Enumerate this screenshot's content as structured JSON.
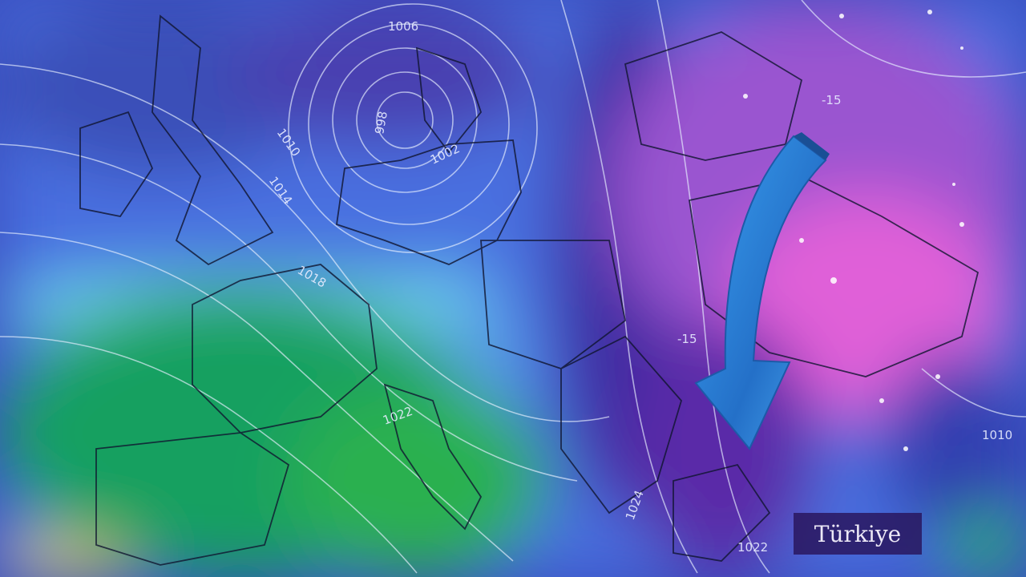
{
  "map": {
    "isobar_labels": [
      "1006",
      "998",
      "1002",
      "1010",
      "1014",
      "1018",
      "1022",
      "1024",
      "-15",
      "-15",
      "1010",
      "1022"
    ],
    "arrow": {
      "direction": "southwest-curving-down",
      "color": "#2f8de0"
    },
    "colors": {
      "cold_extreme": "#e060d8",
      "cold": "#9a55d0",
      "cool": "#4a6fe0",
      "mild": "#6ad0e8",
      "warm": "#1aa060",
      "hot": "#f0e020"
    }
  },
  "badge": {
    "label": "Türkiye"
  }
}
